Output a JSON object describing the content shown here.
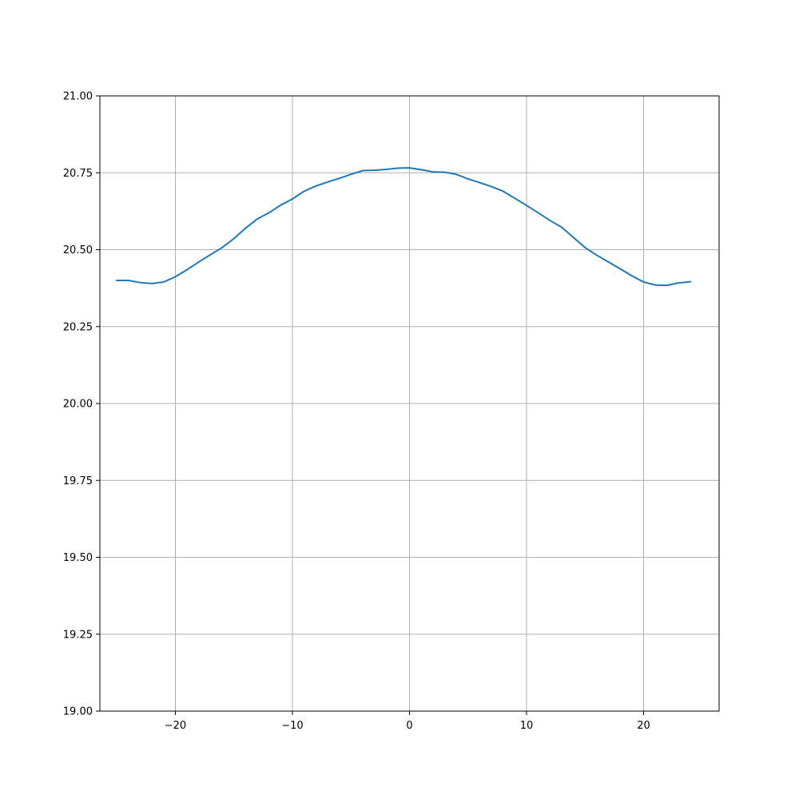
{
  "chart_data": {
    "type": "line",
    "title": "",
    "xlabel": "",
    "ylabel": "",
    "xlim": [
      -26.45,
      26.45
    ],
    "ylim": [
      19.0,
      21.0
    ],
    "xticks": [
      -20,
      -10,
      0,
      10,
      20
    ],
    "xtick_labels": [
      "−20",
      "−10",
      "0",
      "10",
      "20"
    ],
    "yticks": [
      19.0,
      19.25,
      19.5,
      19.75,
      20.0,
      20.25,
      20.5,
      20.75,
      21.0
    ],
    "ytick_labels": [
      "19.00",
      "19.25",
      "19.50",
      "19.75",
      "20.00",
      "20.25",
      "20.50",
      "20.75",
      "21.00"
    ],
    "grid": true,
    "series": [
      {
        "color": "#1f77b4",
        "x": [
          -25,
          -24,
          -23,
          -22,
          -21,
          -20,
          -19,
          -18,
          -17,
          -16,
          -15,
          -14,
          -13,
          -12,
          -11,
          -10,
          -9,
          -8,
          -7,
          -6,
          -5,
          -4,
          -3,
          -2,
          -1,
          0,
          1,
          2,
          3,
          4,
          5,
          6,
          7,
          8,
          9,
          10,
          11,
          12,
          13,
          14,
          15,
          16,
          17,
          18,
          19,
          20,
          21,
          22,
          23,
          24
        ],
        "values": [
          20.4,
          20.4,
          20.393,
          20.39,
          20.395,
          20.412,
          20.435,
          20.46,
          20.484,
          20.507,
          20.536,
          20.57,
          20.6,
          20.62,
          20.645,
          20.665,
          20.69,
          20.707,
          20.72,
          20.732,
          20.745,
          20.757,
          20.758,
          20.761,
          20.765,
          20.766,
          20.76,
          20.753,
          20.752,
          20.745,
          20.73,
          20.718,
          20.705,
          20.69,
          20.667,
          20.644,
          20.62,
          20.595,
          20.573,
          20.54,
          20.507,
          20.482,
          20.46,
          20.438,
          20.415,
          20.395,
          20.385,
          20.384,
          20.392,
          20.396
        ]
      }
    ]
  }
}
